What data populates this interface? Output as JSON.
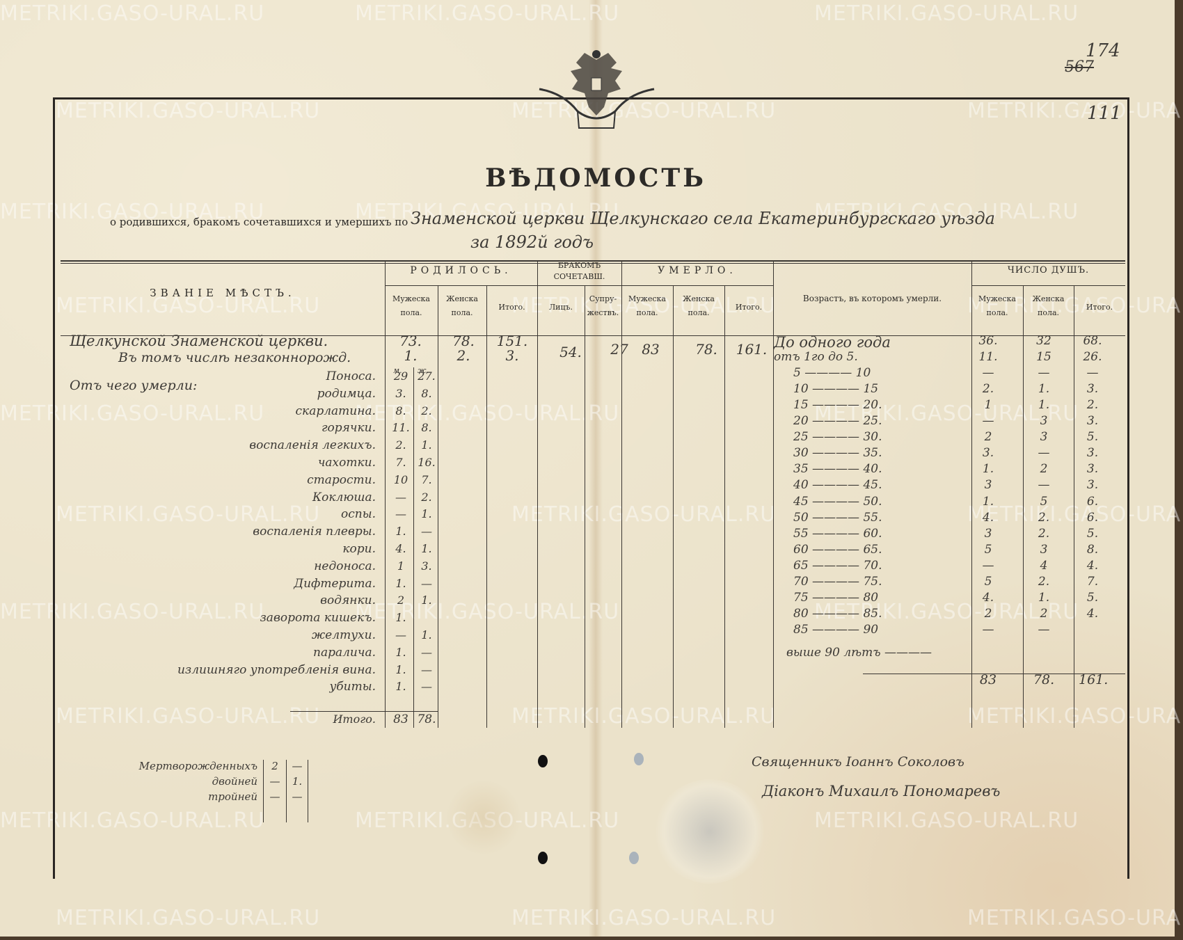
{
  "page_numbers": {
    "current": "174",
    "struck": "567",
    "other": "111"
  },
  "emblem": "double-headed-eagle-emblem",
  "watermark": "METRIKI.GASO-URAL.RU",
  "title": "ВѢДОМОСТЬ",
  "subtitle": {
    "printed": "о родившихся, бракомъ сочетавшихся и умершихъ по",
    "handwritten": "Знаменской   церкви Щелкунскаго села Екатеринбургскаго уѣзда",
    "year": "за 1892й годъ"
  },
  "headers": {
    "place": "ЗВАНІЕ  МѢСТЪ.",
    "born": "РОДИЛОСЬ.",
    "married": "БРАКОМЪ СОЧЕТАВШ.",
    "died": "УМЕРЛО.",
    "age": "Возрастъ, въ которомъ умерли.",
    "souls": "ЧИСЛО ДУШЪ.",
    "male": "Мужеска пола.",
    "female": "Женска пола.",
    "total": "Итого.",
    "persons": "Лицъ.",
    "couples": "Супру- жествъ."
  },
  "summary": {
    "place": "Щелкунской Знаменской церкви.",
    "illegit_label": "Въ томъ числѣ незаконнорожд.",
    "born": {
      "male": "73.",
      "female": "78.",
      "total": "151."
    },
    "illegit": {
      "male": "1.",
      "female": "2.",
      "total": "3."
    },
    "married": {
      "persons": "54.",
      "couples": "27"
    },
    "died": {
      "male": "83",
      "female": "78.",
      "total": "161."
    }
  },
  "causes": {
    "label": "Отъ чего умерли:",
    "col_m": "м.",
    "col_f": "ж.",
    "rows": [
      {
        "name": "Поноса.",
        "m": "29",
        "f": "27."
      },
      {
        "name": "родимца.",
        "m": "3.",
        "f": "8."
      },
      {
        "name": "скарлатина.",
        "m": "8.",
        "f": "2."
      },
      {
        "name": "горячки.",
        "m": "11.",
        "f": "8."
      },
      {
        "name": "воспаленія легкихъ.",
        "m": "2.",
        "f": "1."
      },
      {
        "name": "чахотки.",
        "m": "7.",
        "f": "16."
      },
      {
        "name": "старости.",
        "m": "10",
        "f": "7."
      },
      {
        "name": "Коклюша.",
        "m": "—",
        "f": "2."
      },
      {
        "name": "оспы.",
        "m": "—",
        "f": "1."
      },
      {
        "name": "воспаленія плевры.",
        "m": "1.",
        "f": "—"
      },
      {
        "name": "кори.",
        "m": "4.",
        "f": "1."
      },
      {
        "name": "недоноса.",
        "m": "1",
        "f": "3."
      },
      {
        "name": "Дифтерита.",
        "m": "1.",
        "f": "—"
      },
      {
        "name": "водянки.",
        "m": "2",
        "f": "1."
      },
      {
        "name": "заворота кишекъ.",
        "m": "1.",
        "f": ""
      },
      {
        "name": "желтухи.",
        "m": "—",
        "f": "1."
      },
      {
        "name": "паралича.",
        "m": "1.",
        "f": "—"
      },
      {
        "name": "излишняго употребленія вина.",
        "m": "1.",
        "f": "—"
      },
      {
        "name": "убиты.",
        "m": "1.",
        "f": "—"
      }
    ],
    "total_label": "Итого.",
    "total_m": "83",
    "total_f": "78."
  },
  "ages": {
    "rows": [
      {
        "label": "До одного года",
        "m": "36.",
        "f": "32",
        "t": "68."
      },
      {
        "label": "отъ 1го   до   5.",
        "m": "11.",
        "f": "15",
        "t": "26."
      },
      {
        "label": "5 ———— 10",
        "m": "—",
        "f": "—",
        "t": "—"
      },
      {
        "label": "10 ———— 15",
        "m": "2.",
        "f": "1.",
        "t": "3."
      },
      {
        "label": "15 ———— 20.",
        "m": "1",
        "f": "1.",
        "t": "2."
      },
      {
        "label": "20 ———— 25.",
        "m": "—",
        "f": "3",
        "t": "3."
      },
      {
        "label": "25 ———— 30.",
        "m": "2",
        "f": "3",
        "t": "5."
      },
      {
        "label": "30 ———— 35.",
        "m": "3.",
        "f": "—",
        "t": "3."
      },
      {
        "label": "35 ———— 40.",
        "m": "1.",
        "f": "2",
        "t": "3."
      },
      {
        "label": "40 ———— 45.",
        "m": "3",
        "f": "—",
        "t": "3."
      },
      {
        "label": "45 ———— 50.",
        "m": "1.",
        "f": "5",
        "t": "6."
      },
      {
        "label": "50 ———— 55.",
        "m": "4.",
        "f": "2.",
        "t": "6."
      },
      {
        "label": "55 ———— 60.",
        "m": "3",
        "f": "2.",
        "t": "5."
      },
      {
        "label": "60 ———— 65.",
        "m": "5",
        "f": "3",
        "t": "8."
      },
      {
        "label": "65 ———— 70.",
        "m": "—",
        "f": "4",
        "t": "4."
      },
      {
        "label": "70 ———— 75.",
        "m": "5",
        "f": "2.",
        "t": "7."
      },
      {
        "label": "75 ———— 80",
        "m": "4.",
        "f": "1.",
        "t": "5."
      },
      {
        "label": "80 ———— 85.",
        "m": "2",
        "f": "2",
        "t": "4."
      },
      {
        "label": "85 ———— 90",
        "m": "—",
        "f": "—",
        "t": ""
      }
    ],
    "above": "выше 90 лѣтъ ————",
    "total_m": "83",
    "total_f": "78.",
    "total_t": "161."
  },
  "stillborn": {
    "rows": [
      {
        "label": "Мертворожденныхъ",
        "m": "2",
        "f": "—"
      },
      {
        "label": "двойней",
        "m": "—",
        "f": "1."
      },
      {
        "label": "тройней",
        "m": "—",
        "f": "—"
      }
    ]
  },
  "signatures": {
    "priest": "Священникъ Іоаннъ Соколовъ",
    "deacon": "Діаконъ Михаилъ Пономаревъ"
  }
}
